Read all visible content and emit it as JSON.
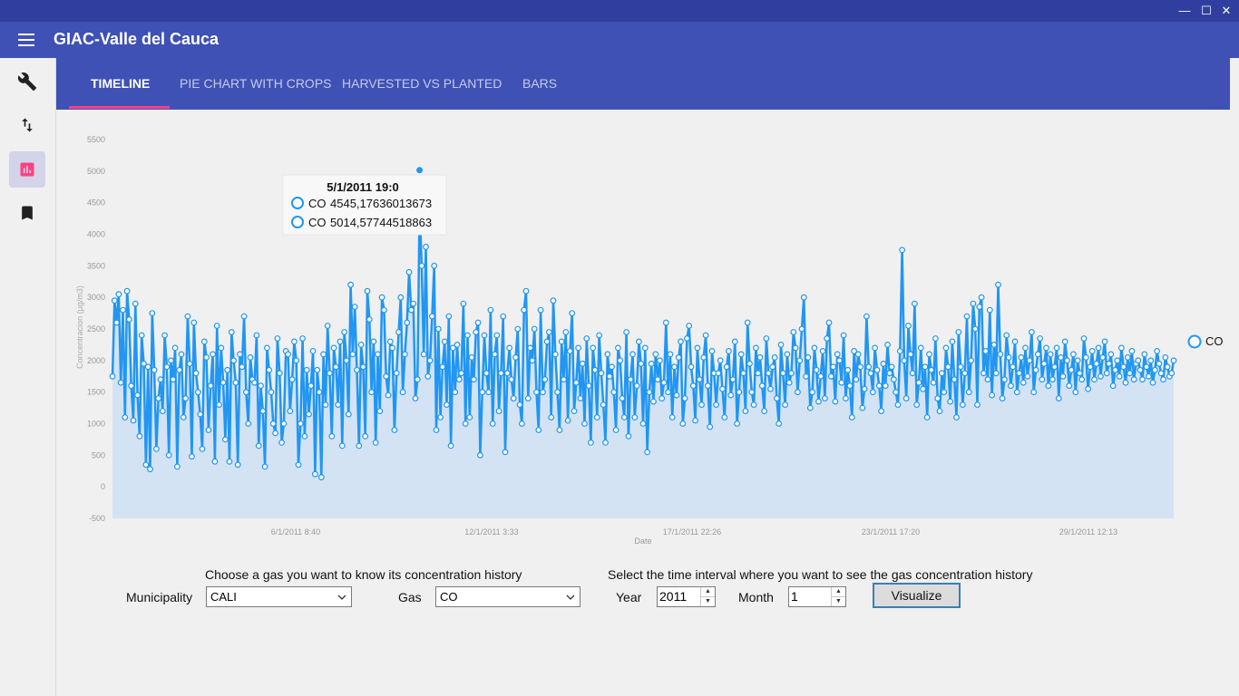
{
  "window": {
    "minimize_glyph": "—",
    "maximize_glyph": "☐",
    "close_glyph": "✕"
  },
  "app": {
    "title": "GIAC-Valle del Cauca"
  },
  "sidebar": {
    "items": [
      {
        "icon": "wrench-icon",
        "active": false
      },
      {
        "icon": "swap-vertical-icon",
        "active": false
      },
      {
        "icon": "bar-chart-icon",
        "active": true
      },
      {
        "icon": "bookmark-icon",
        "active": false
      }
    ]
  },
  "tabs": [
    {
      "label": "TIMELINE",
      "active": true
    },
    {
      "label": "PIE CHART WITH CROPS",
      "active": false
    },
    {
      "label": "HARVESTED VS PLANTED",
      "active": false
    },
    {
      "label": "BARS",
      "active": false
    }
  ],
  "chart_data": {
    "type": "area",
    "title": "",
    "xlabel": "Date",
    "ylabel": "Concentracion (µg/m3)",
    "ylim": [
      -500,
      5500
    ],
    "yticks": [
      "5500",
      "5000",
      "4500",
      "4000",
      "3500",
      "3000",
      "2500",
      "2000",
      "1500",
      "1000",
      "500",
      "0",
      "-500"
    ],
    "xticks": [
      "6/1/2011 8:40",
      "12/1/2011 3:33",
      "17/1/2011 22:26",
      "23/1/2011 17:20",
      "29/1/2011 12:13"
    ],
    "legend": {
      "position": "right",
      "entries": [
        "CO"
      ]
    },
    "colors": {
      "line": "#2196f3",
      "fill": "#d3e3f3"
    },
    "series": [
      {
        "name": "CO",
        "values": [
          1750,
          2950,
          2600,
          3050,
          1650,
          2800,
          1100,
          3100,
          2650,
          1600,
          1050,
          2900,
          1450,
          800,
          2400,
          1950,
          350,
          1900,
          280,
          2750,
          1850,
          600,
          1400,
          1700,
          1200,
          2400,
          1900,
          500,
          2000,
          1700,
          2200,
          320,
          1850,
          2100,
          1100,
          1400,
          2700,
          1950,
          480,
          2600,
          1800,
          1500,
          1150,
          600,
          2300,
          2050,
          900,
          1600,
          2100,
          400,
          2550,
          1300,
          2200,
          1650,
          750,
          1850,
          400,
          2450,
          2000,
          1650,
          350,
          2100,
          1900,
          2700,
          1500,
          1000,
          2050,
          1700,
          1650,
          2400,
          650,
          1600,
          1200,
          320,
          2200,
          1850,
          1500,
          1000,
          850,
          2350,
          1800,
          700,
          1000,
          2150,
          2100,
          1200,
          1700,
          2300,
          2000,
          350,
          1000,
          2350,
          800,
          1850,
          1150,
          1600,
          2150,
          200,
          1850,
          1500,
          150,
          2100,
          1300,
          2550,
          1800,
          800,
          2200,
          1900,
          1300,
          2300,
          650,
          2450,
          2000,
          1150,
          3200,
          2100,
          2850,
          1850,
          650,
          2250,
          1900,
          800,
          3100,
          2650,
          1500,
          2300,
          700,
          2100,
          1200,
          3000,
          2800,
          1750,
          1450,
          2300,
          2200,
          900,
          1800,
          2450,
          3000,
          1500,
          2100,
          2600,
          3400,
          2800,
          2900,
          1400,
          1700,
          4450,
          3500,
          2100,
          3800,
          1750,
          2000,
          2700,
          3500,
          900,
          2500,
          1100,
          1900,
          2300,
          1300,
          2700,
          650,
          2200,
          1500,
          2250,
          1700,
          1800,
          2900,
          1000,
          2400,
          1100,
          2050,
          1700,
          2450,
          2600,
          500,
          1500,
          2400,
          1800,
          1500,
          2800,
          1000,
          2100,
          2400,
          1200,
          1800,
          2700,
          550,
          1800,
          2200,
          1700,
          1400,
          2050,
          2500,
          1300,
          1000,
          2800,
          3100,
          1400,
          2200,
          2000,
          2500,
          1500,
          900,
          2800,
          1500,
          1700,
          2300,
          2450,
          1100,
          2950,
          2100,
          1500,
          900,
          2300,
          1700,
          2450,
          1050,
          2150,
          2750,
          1200,
          1650,
          2200,
          1400,
          1950,
          1000,
          2350,
          1600,
          700,
          2200,
          1850,
          1100,
          2400,
          1800,
          1300,
          700,
          2100,
          1750,
          1900,
          1500,
          900,
          2200,
          2000,
          1400,
          1100,
          2450,
          800,
          1700,
          2100,
          1100,
          1600,
          2300,
          1950,
          1000,
          2200,
          550,
          1500,
          1950,
          1350,
          2100,
          1700,
          2000,
          1400,
          1650,
          2600,
          1500,
          2100,
          1100,
          1900,
          1450,
          2050,
          2300,
          1000,
          1400,
          2350,
          2550,
          1900,
          1600,
          1050,
          2200,
          1700,
          1300,
          2050,
          2400,
          1600,
          950,
          2150,
          1800,
          1300,
          1800,
          2000,
          1550,
          1100,
          1900,
          2150,
          1450,
          1700,
          2300,
          1000,
          1500,
          2100,
          1800,
          1200,
          2600,
          1950,
          1500,
          1300,
          2200,
          1800,
          2050,
          1600,
          1200,
          2350,
          1800,
          1550,
          1900,
          2050,
          1400,
          1000,
          2250,
          1800,
          1300,
          2100,
          1650,
          1800,
          2450,
          2200,
          1500,
          2000,
          2500,
          3000,
          1750,
          2050,
          1250,
          1500,
          2200,
          1850,
          1350,
          1750,
          2150,
          1400,
          2350,
          2600,
          1750,
          1900,
          1350,
          2100,
          2000,
          1650,
          2400,
          1400,
          1850,
          1600,
          1100,
          2150,
          1700,
          2100,
          1900,
          1250,
          1550,
          2700,
          1900,
          1800,
          1500,
          2200,
          1850,
          1600,
          1200,
          1950,
          1600,
          2250,
          1800,
          1900,
          1700,
          1500,
          1300,
          2150,
          3750,
          2000,
          1400,
          2550,
          2100,
          1800,
          2900,
          1300,
          1650,
          2200,
          1550,
          1900,
          1100,
          2100,
          1850,
          1650,
          2350,
          1400,
          1200,
          1800,
          1500,
          2200,
          1900,
          1350,
          2300,
          1700,
          1100,
          2450,
          1900,
          1300,
          1800,
          2700,
          1500,
          2000,
          2900,
          2500,
          1300,
          2850,
          3000,
          1800,
          2150,
          1700,
          2800,
          1450,
          2250,
          1800,
          3200,
          2100,
          1400,
          1700,
          2400,
          2050,
          1600,
          1900,
          2300,
          1500,
          1800,
          2050,
          1650,
          2200,
          1750,
          2000,
          2450,
          1500,
          1850,
          2100,
          2350,
          1700,
          1950,
          2200,
          1600,
          2100,
          1700,
          1900,
          2200,
          1400,
          2050,
          1750,
          2300,
          2000,
          1600,
          1850,
          2100,
          1500,
          2000,
          1800,
          1700,
          2350,
          2050,
          1550,
          1900,
          2150,
          1700,
          1950,
          2200,
          1750,
          2050,
          2300,
          1800,
          1950,
          2100,
          1600,
          1850,
          2000,
          1750,
          2200,
          1900,
          1650,
          2050,
          1800,
          2150,
          1700,
          1950,
          2000,
          1850,
          1700,
          2100,
          1900,
          1750,
          2000,
          1650,
          1850,
          2150,
          1950,
          1800,
          1700,
          2050,
          1900,
          1750,
          1800,
          2000
        ]
      }
    ]
  },
  "tooltip": {
    "title": "5/1/2011 19:0",
    "rows": [
      {
        "series": "CO",
        "value": "4545,17636013673"
      },
      {
        "series": "CO",
        "value": "5014,57744518863"
      }
    ]
  },
  "controls": {
    "gas_prompt": "Choose a gas you want to know its concentration history",
    "interval_prompt": "Select the time interval where you want to see the gas concentration history",
    "municipality_label": "Municipality",
    "municipality_value": "CALI",
    "gas_label": "Gas",
    "gas_value": "CO",
    "year_label": "Year",
    "year_value": "2011",
    "month_label": "Month",
    "month_value": "1",
    "visualize_label": "Visualize"
  }
}
